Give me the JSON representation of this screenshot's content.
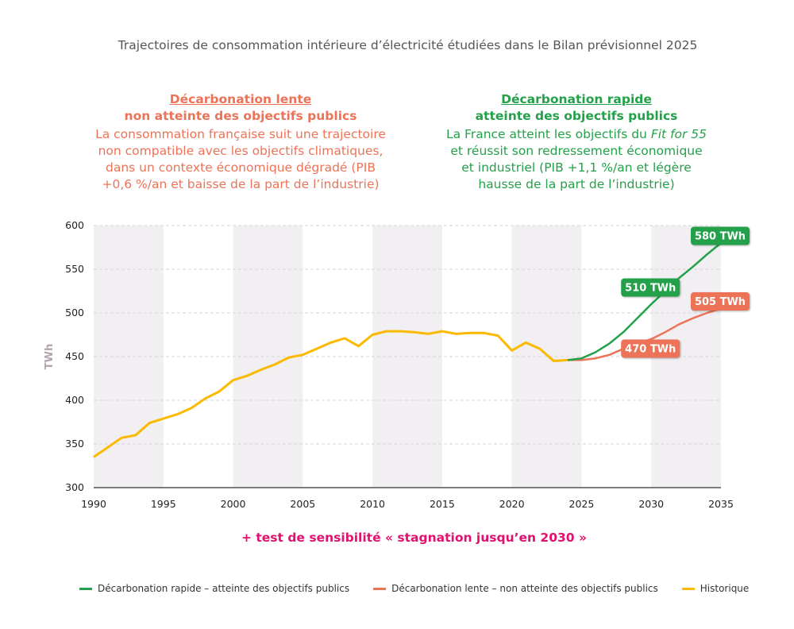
{
  "title": "Trajectoires de consommation intérieure d’électricité étudiées dans le Bilan prévisionnel 2025",
  "scenarios": {
    "slow": {
      "heading1": "Décarbonation lente",
      "heading2": "non atteinte des objectifs publics",
      "desc": [
        "La consommation française suit une trajectoire",
        "non compatible avec les objectifs climatiques,",
        "dans un contexte économique dégradé (PIB",
        "+0,6 %/an et baisse de la part de l’industrie)"
      ]
    },
    "fast": {
      "heading1": "Décarbonation rapide",
      "heading2": "atteinte des objectifs publics",
      "desc_pre": "La France atteint les objectifs du ",
      "desc_em": "Fit for 55",
      "desc": [
        "et réussit son redressement économique",
        "et industriel (PIB +1,1 %/an et légère",
        "hausse de la part de l’industrie)"
      ]
    }
  },
  "sensitivity": "+ test de sensibilité « stagnation jusqu’en 2030 »",
  "colors": {
    "fast": "#23a14a",
    "slow": "#ec7358",
    "hist": "#fbb900",
    "band": "#f1eff1"
  },
  "chart_data": {
    "type": "line",
    "title": "Trajectoires de consommation intérieure d’électricité",
    "xlabel": "",
    "ylabel": "TWh",
    "xlim": [
      1990,
      2035
    ],
    "ylim": [
      300,
      600
    ],
    "xticks": [
      1990,
      1995,
      2000,
      2005,
      2010,
      2015,
      2020,
      2025,
      2030,
      2035
    ],
    "yticks": [
      300,
      350,
      400,
      450,
      500,
      550,
      600
    ],
    "grid": true,
    "legend_position": "bottom",
    "series": [
      {
        "key": "fast",
        "name": "Décarbonation rapide – atteinte des objectifs publics",
        "x": [
          2024,
          2025,
          2026,
          2027,
          2028,
          2029,
          2030,
          2031,
          2032,
          2033,
          2034,
          2035
        ],
        "values": [
          446,
          448,
          455,
          465,
          478,
          494,
          510,
          525,
          540,
          553,
          567,
          580
        ]
      },
      {
        "key": "slow",
        "name": "Décarbonation lente – non atteinte des objectifs publics",
        "x": [
          2024,
          2025,
          2026,
          2027,
          2028,
          2029,
          2030,
          2031,
          2032,
          2033,
          2034,
          2035
        ],
        "values": [
          446,
          446,
          448,
          452,
          459,
          465,
          470,
          478,
          487,
          494,
          500,
          505
        ]
      },
      {
        "key": "hist",
        "name": "Historique",
        "x": [
          1990,
          1991,
          1992,
          1993,
          1994,
          1995,
          1996,
          1997,
          1998,
          1999,
          2000,
          2001,
          2002,
          2003,
          2004,
          2005,
          2006,
          2007,
          2008,
          2009,
          2010,
          2011,
          2012,
          2013,
          2014,
          2015,
          2016,
          2017,
          2018,
          2019,
          2020,
          2021,
          2022,
          2023,
          2024
        ],
        "values": [
          335,
          346,
          357,
          360,
          374,
          379,
          384,
          391,
          402,
          410,
          423,
          428,
          435,
          441,
          449,
          452,
          459,
          466,
          471,
          462,
          475,
          479,
          479,
          478,
          476,
          479,
          476,
          477,
          477,
          474,
          457,
          466,
          459,
          445,
          446
        ]
      }
    ],
    "annotations": [
      {
        "series": "fast",
        "x": 2030,
        "text": "510 TWh"
      },
      {
        "series": "fast",
        "x": 2035,
        "text": "580 TWh"
      },
      {
        "series": "slow",
        "x": 2030,
        "text": "470 TWh"
      },
      {
        "series": "slow",
        "x": 2035,
        "text": "505 TWh"
      }
    ]
  }
}
